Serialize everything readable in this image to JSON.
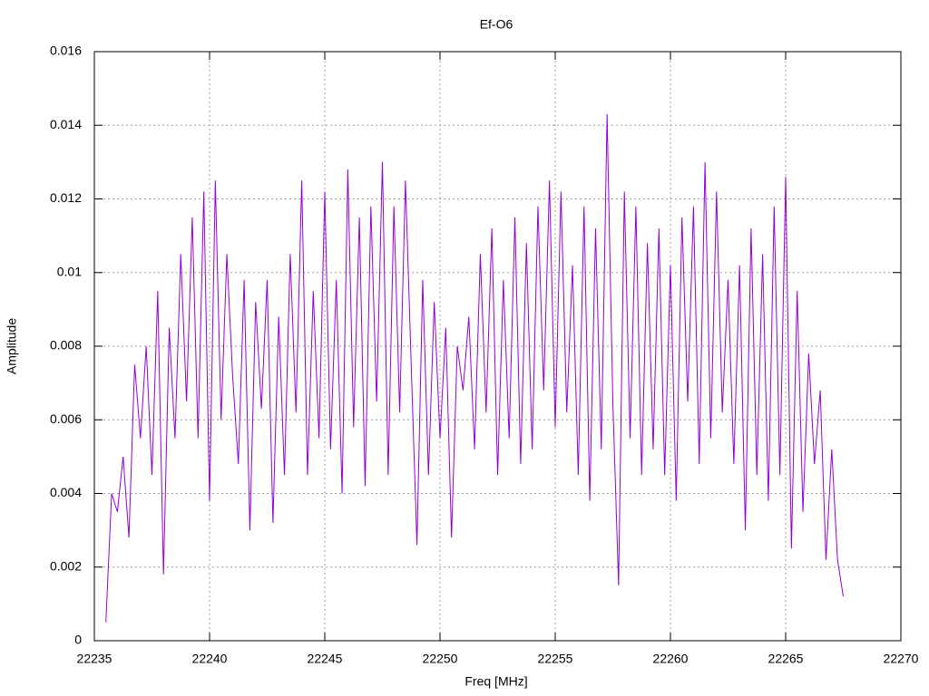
{
  "chart_data": {
    "type": "line",
    "title": "Ef-O6",
    "xlabel": "Freq [MHz]",
    "ylabel": "Amplitude",
    "x": [
      22235.5,
      22235.75,
      22236,
      22236.25,
      22236.5,
      22236.75,
      22237,
      22237.25,
      22237.5,
      22237.75,
      22238,
      22238.25,
      22238.5,
      22238.75,
      22239,
      22239.25,
      22239.5,
      22239.75,
      22240,
      22240.25,
      22240.5,
      22240.75,
      22241,
      22241.25,
      22241.5,
      22241.75,
      22242,
      22242.25,
      22242.5,
      22242.75,
      22243,
      22243.25,
      22243.5,
      22243.75,
      22244,
      22244.25,
      22244.5,
      22244.75,
      22245,
      22245.25,
      22245.5,
      22245.75,
      22246,
      22246.25,
      22246.5,
      22246.75,
      22247,
      22247.25,
      22247.5,
      22247.75,
      22248,
      22248.25,
      22248.5,
      22248.75,
      22249,
      22249.25,
      22249.5,
      22249.75,
      22250,
      22250.25,
      22250.5,
      22250.75,
      22251,
      22251.25,
      22251.5,
      22251.75,
      22252,
      22252.25,
      22252.5,
      22252.75,
      22253,
      22253.25,
      22253.5,
      22253.75,
      22254,
      22254.25,
      22254.5,
      22254.75,
      22255,
      22255.25,
      22255.5,
      22255.75,
      22256,
      22256.25,
      22256.5,
      22256.75,
      22257,
      22257.25,
      22257.5,
      22257.75,
      22258,
      22258.25,
      22258.5,
      22258.75,
      22259,
      22259.25,
      22259.5,
      22259.75,
      22260,
      22260.25,
      22260.5,
      22260.75,
      22261,
      22261.25,
      22261.5,
      22261.75,
      22262,
      22262.25,
      22262.5,
      22262.75,
      22263,
      22263.25,
      22263.5,
      22263.75,
      22264,
      22264.25,
      22264.5,
      22264.75,
      22265,
      22265.25,
      22265.5,
      22265.75,
      22266,
      22266.25,
      22266.5,
      22266.75,
      22267,
      22267.25,
      22267.5
    ],
    "series": [
      {
        "color": "#9400d3",
        "values": [
          0.0005,
          0.004,
          0.0035,
          0.005,
          0.0028,
          0.0075,
          0.0055,
          0.008,
          0.0045,
          0.0095,
          0.0018,
          0.0085,
          0.0055,
          0.0105,
          0.0065,
          0.0115,
          0.0055,
          0.0122,
          0.0038,
          0.0125,
          0.006,
          0.0105,
          0.0072,
          0.0048,
          0.0098,
          0.003,
          0.0092,
          0.0063,
          0.0098,
          0.0032,
          0.0088,
          0.0045,
          0.0105,
          0.0062,
          0.0125,
          0.0045,
          0.0095,
          0.0055,
          0.0122,
          0.0052,
          0.0098,
          0.004,
          0.0128,
          0.0058,
          0.0115,
          0.0042,
          0.0118,
          0.0065,
          0.013,
          0.0045,
          0.0118,
          0.0062,
          0.0125,
          0.0075,
          0.0026,
          0.0098,
          0.0045,
          0.0092,
          0.0055,
          0.0085,
          0.0028,
          0.008,
          0.0068,
          0.0088,
          0.0052,
          0.0105,
          0.0062,
          0.0112,
          0.0045,
          0.0098,
          0.0055,
          0.0115,
          0.0048,
          0.0108,
          0.0052,
          0.0118,
          0.0068,
          0.0125,
          0.0058,
          0.0122,
          0.0062,
          0.0102,
          0.0045,
          0.0118,
          0.0038,
          0.0112,
          0.0052,
          0.0143,
          0.0065,
          0.0015,
          0.0122,
          0.0055,
          0.0118,
          0.0045,
          0.0108,
          0.0052,
          0.0112,
          0.0045,
          0.0102,
          0.0038,
          0.0115,
          0.0065,
          0.0118,
          0.0048,
          0.013,
          0.0055,
          0.0122,
          0.0062,
          0.0098,
          0.0048,
          0.0102,
          0.003,
          0.0112,
          0.0045,
          0.0105,
          0.0038,
          0.0118,
          0.0045,
          0.0126,
          0.0025,
          0.0095,
          0.0035,
          0.0078,
          0.0048,
          0.0068,
          0.0022,
          0.0052,
          0.0022,
          0.0012
        ]
      }
    ],
    "xlim": [
      22235,
      22270
    ],
    "xticks": [
      22235,
      22240,
      22245,
      22250,
      22255,
      22260,
      22265,
      22270
    ],
    "ylim": [
      0,
      0.016
    ],
    "yticks": [
      0,
      0.002,
      0.004,
      0.006,
      0.008,
      0.01,
      0.012,
      0.014,
      0.016
    ],
    "grid": true
  }
}
